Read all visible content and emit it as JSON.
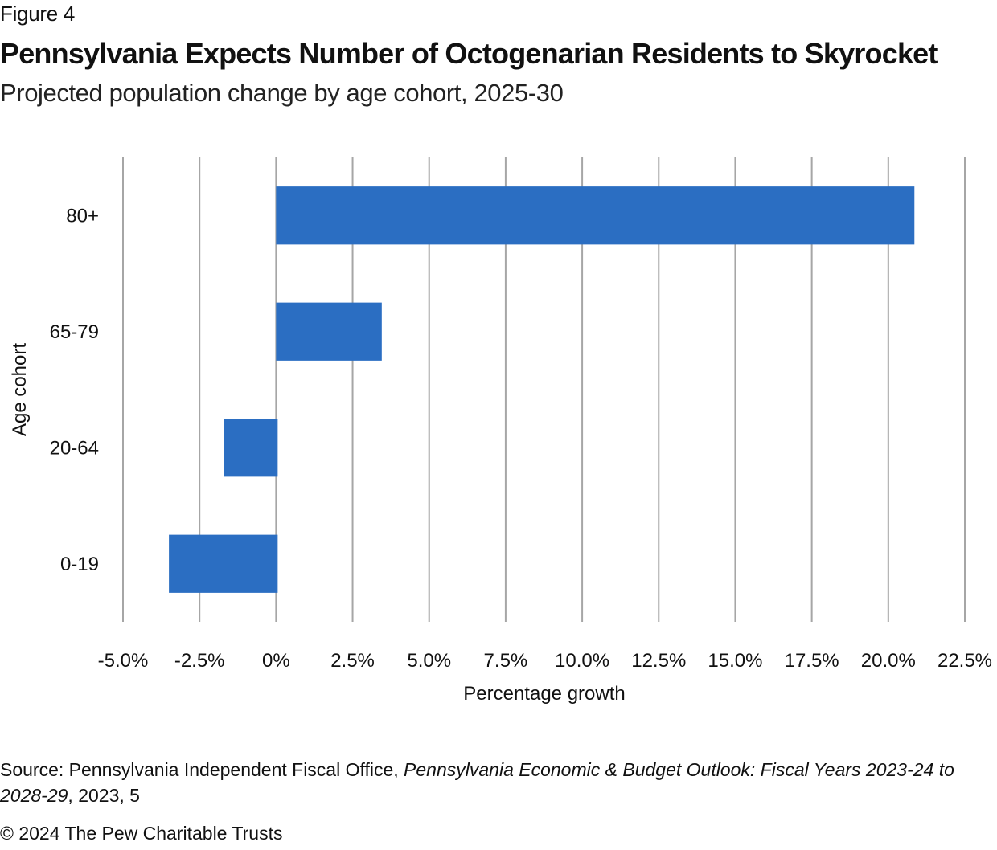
{
  "figure_label": "Figure 4",
  "title": "Pennsylvania Expects Number of Octogenarian Residents to Skyrocket",
  "subtitle": "Projected population change by age cohort, 2025-30",
  "source": {
    "prefix": "Source: Pennsylvania Independent Fiscal Office, ",
    "italic_title": "Pennsylvania Economic & Budget Outlook: Fiscal Years 2023-24 to 2028-29",
    "suffix": ", 2023, 5"
  },
  "copyright": "© 2024 The Pew Charitable Trusts",
  "colors": {
    "bar": "#2b6ec2",
    "grid": "#a6a6a6"
  },
  "chart_data": {
    "type": "bar",
    "orientation": "horizontal",
    "title": "Pennsylvania Expects Number of Octogenarian Residents to Skyrocket",
    "subtitle": "Projected population change by age cohort, 2025-30",
    "xlabel": "Percentage growth",
    "ylabel": "Age cohort",
    "categories": [
      "80+",
      "65-79",
      "20-64",
      "0-19"
    ],
    "values": [
      20.8,
      3.4,
      -1.7,
      -3.5
    ],
    "unit": "%",
    "xlim": [
      -5.0,
      22.5
    ],
    "x_ticks": [
      -5.0,
      -2.5,
      0,
      2.5,
      5.0,
      7.5,
      10.0,
      12.5,
      15.0,
      17.5,
      20.0,
      22.5
    ],
    "x_tick_labels": [
      "-5.0%",
      "-2.5%",
      "0%",
      "2.5%",
      "5.0%",
      "7.5%",
      "10.0%",
      "12.5%",
      "15.0%",
      "17.5%",
      "20.0%",
      "22.5%"
    ],
    "grid": "vertical",
    "legend": "none"
  }
}
